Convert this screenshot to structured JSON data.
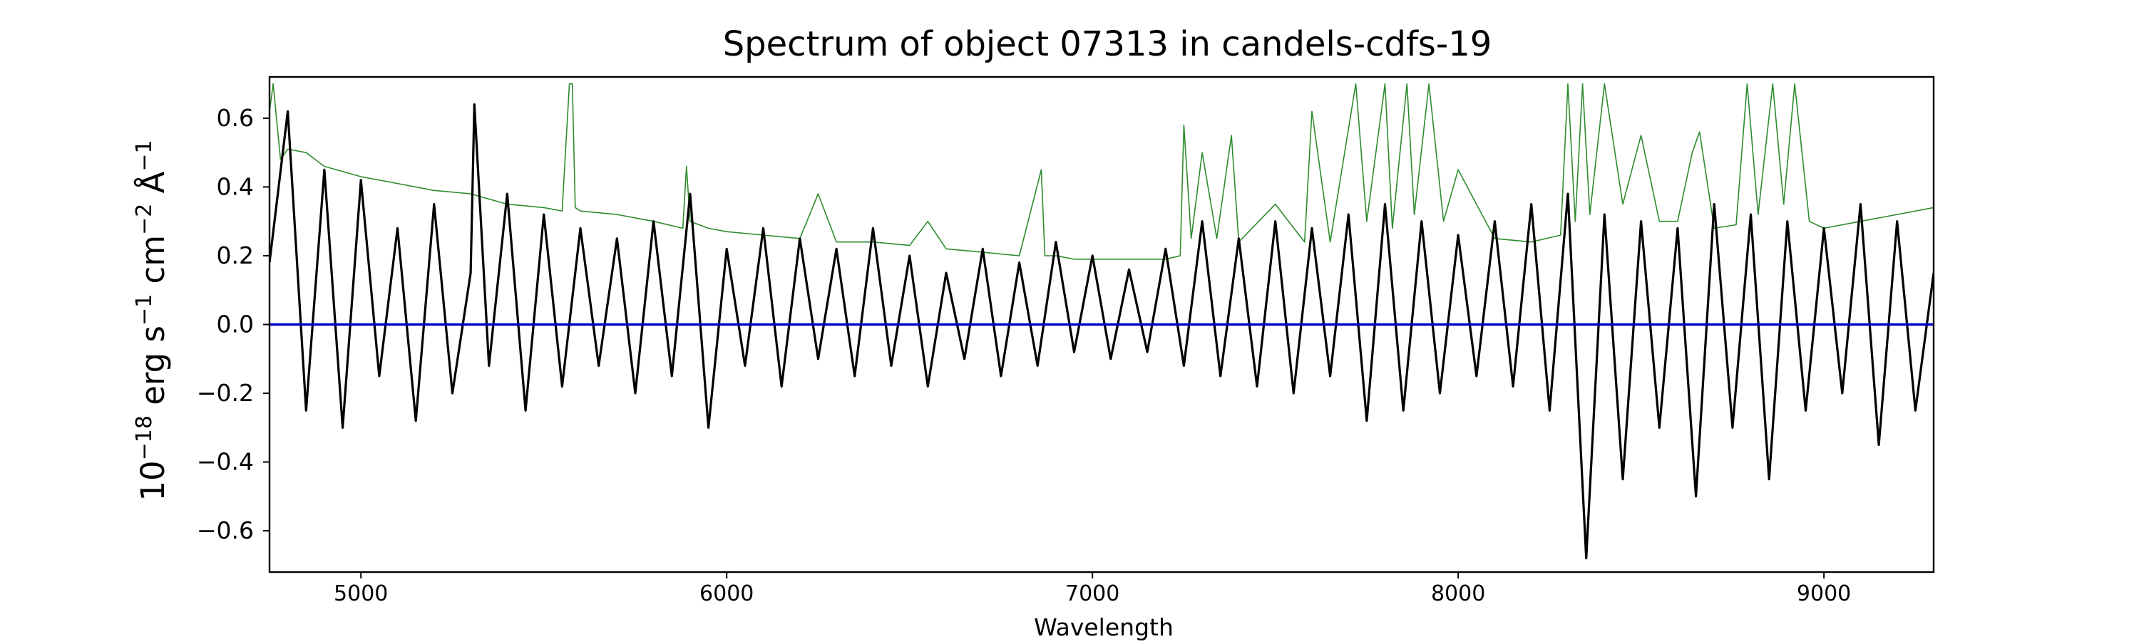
{
  "chart_data": {
    "type": "line",
    "title": "Spectrum of object 07313 in candels-cdfs-19",
    "xlabel": "Wavelength",
    "ylabel_base": "10",
    "ylabel_exp": "−18",
    "ylabel_erg": " erg s",
    "ylabel_s_exp": "−1",
    "ylabel_cm": " cm",
    "ylabel_cm_exp": "−2",
    "ylabel_ang": " Å",
    "ylabel_ang_exp": "−1",
    "xlim": [
      4750,
      9300
    ],
    "ylim": [
      -0.72,
      0.72
    ],
    "x_ticks": [
      5000,
      6000,
      7000,
      8000,
      9000
    ],
    "x_tick_labels": [
      "5000",
      "6000",
      "7000",
      "8000",
      "9000"
    ],
    "y_ticks": [
      -0.6,
      -0.4,
      -0.2,
      0.0,
      0.2,
      0.4,
      0.6
    ],
    "y_tick_labels": [
      "−0.6",
      "−0.4",
      "−0.2",
      "0.0",
      "0.2",
      "0.4",
      "0.6"
    ],
    "grid": false,
    "colors": {
      "flux": "#000000",
      "error": "#2e8b2e",
      "zero": "#0000cc"
    },
    "series": [
      {
        "role": "flux",
        "x": [
          4750,
          4800,
          4850,
          4900,
          4950,
          5000,
          5050,
          5100,
          5150,
          5200,
          5250,
          5300,
          5310,
          5350,
          5400,
          5450,
          5500,
          5550,
          5600,
          5650,
          5700,
          5750,
          5800,
          5850,
          5900,
          5950,
          6000,
          6050,
          6100,
          6150,
          6200,
          6250,
          6300,
          6350,
          6400,
          6450,
          6500,
          6550,
          6600,
          6650,
          6700,
          6750,
          6800,
          6850,
          6900,
          6950,
          7000,
          7050,
          7100,
          7150,
          7200,
          7250,
          7300,
          7350,
          7400,
          7450,
          7500,
          7550,
          7600,
          7650,
          7700,
          7750,
          7800,
          7850,
          7900,
          7950,
          8000,
          8050,
          8100,
          8150,
          8200,
          8250,
          8300,
          8350,
          8400,
          8450,
          8500,
          8550,
          8600,
          8650,
          8700,
          8750,
          8800,
          8850,
          8900,
          8950,
          9000,
          9050,
          9100,
          9150,
          9200,
          9250,
          9300
        ],
        "y": [
          0.18,
          0.62,
          -0.25,
          0.45,
          -0.3,
          0.42,
          -0.15,
          0.28,
          -0.28,
          0.35,
          -0.2,
          0.15,
          0.64,
          -0.12,
          0.38,
          -0.25,
          0.32,
          -0.18,
          0.28,
          -0.12,
          0.25,
          -0.2,
          0.3,
          -0.15,
          0.38,
          -0.3,
          0.22,
          -0.12,
          0.28,
          -0.18,
          0.25,
          -0.1,
          0.22,
          -0.15,
          0.28,
          -0.12,
          0.2,
          -0.18,
          0.15,
          -0.1,
          0.22,
          -0.15,
          0.18,
          -0.12,
          0.24,
          -0.08,
          0.2,
          -0.1,
          0.16,
          -0.08,
          0.22,
          -0.12,
          0.3,
          -0.15,
          0.25,
          -0.18,
          0.3,
          -0.2,
          0.28,
          -0.15,
          0.32,
          -0.28,
          0.35,
          -0.25,
          0.3,
          -0.2,
          0.26,
          -0.15,
          0.3,
          -0.18,
          0.35,
          -0.25,
          0.38,
          -0.68,
          0.32,
          -0.45,
          0.3,
          -0.3,
          0.28,
          -0.5,
          0.35,
          -0.3,
          0.32,
          -0.45,
          0.3,
          -0.25,
          0.28,
          -0.2,
          0.35,
          -0.35,
          0.3,
          -0.25,
          0.15
        ]
      },
      {
        "role": "error",
        "x": [
          4750,
          4760,
          4780,
          4800,
          4850,
          4900,
          5000,
          5100,
          5200,
          5300,
          5400,
          5500,
          5550,
          5570,
          5578,
          5586,
          5600,
          5700,
          5800,
          5880,
          5890,
          5900,
          5950,
          6000,
          6100,
          6200,
          6250,
          6300,
          6400,
          6500,
          6550,
          6600,
          6700,
          6800,
          6860,
          6870,
          6900,
          6950,
          7000,
          7100,
          7200,
          7240,
          7250,
          7270,
          7300,
          7340,
          7380,
          7400,
          7500,
          7580,
          7600,
          7650,
          7720,
          7750,
          7800,
          7820,
          7860,
          7880,
          7920,
          7960,
          8000,
          8100,
          8200,
          8280,
          8300,
          8320,
          8340,
          8360,
          8400,
          8450,
          8500,
          8550,
          8600,
          8640,
          8660,
          8700,
          8760,
          8790,
          8820,
          8860,
          8890,
          8920,
          8960,
          9000,
          9100,
          9200,
          9300
        ],
        "y": [
          0.62,
          0.7,
          0.48,
          0.51,
          0.5,
          0.46,
          0.43,
          0.41,
          0.39,
          0.38,
          0.35,
          0.34,
          0.33,
          0.7,
          0.7,
          0.34,
          0.33,
          0.32,
          0.3,
          0.28,
          0.46,
          0.3,
          0.28,
          0.27,
          0.26,
          0.25,
          0.38,
          0.24,
          0.24,
          0.23,
          0.3,
          0.22,
          0.21,
          0.2,
          0.45,
          0.2,
          0.2,
          0.19,
          0.19,
          0.19,
          0.19,
          0.2,
          0.58,
          0.25,
          0.5,
          0.25,
          0.55,
          0.24,
          0.35,
          0.24,
          0.62,
          0.24,
          0.7,
          0.3,
          0.7,
          0.28,
          0.7,
          0.32,
          0.7,
          0.3,
          0.45,
          0.25,
          0.24,
          0.26,
          0.7,
          0.3,
          0.7,
          0.32,
          0.7,
          0.35,
          0.55,
          0.3,
          0.3,
          0.5,
          0.56,
          0.28,
          0.29,
          0.7,
          0.32,
          0.7,
          0.35,
          0.7,
          0.3,
          0.28,
          0.3,
          0.32,
          0.34
        ]
      }
    ]
  }
}
